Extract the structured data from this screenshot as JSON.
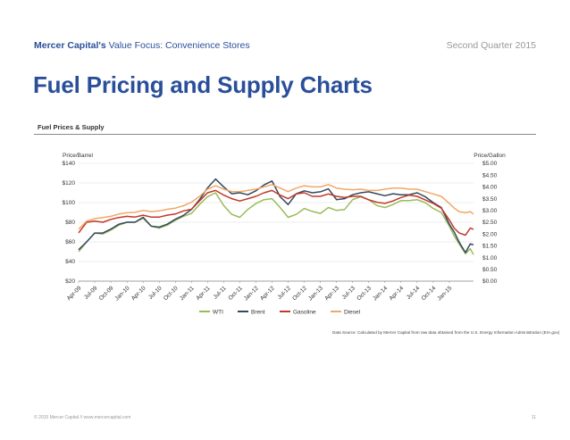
{
  "header": {
    "brand": "Mercer Capital's",
    "subtitle": "Value Focus: Convenience Stores",
    "quarter": "Second Quarter 2015"
  },
  "page_title": "Fuel Pricing and Supply Charts",
  "section_title": "Fuel Prices & Supply",
  "footer": {
    "copyright": "© 2015 Mercer Capital // www.mercercapital.com",
    "page_number": "11"
  },
  "chart_data": {
    "type": "line",
    "title": "Fuel Prices & Supply",
    "ylabel_left": "Price/Barrel",
    "ylabel_right": "Price/Gallon",
    "ylim_left": [
      20,
      140
    ],
    "ylim_right": [
      0,
      5
    ],
    "yticks_left": [
      "$20",
      "$40",
      "$60",
      "$80",
      "$100",
      "$120",
      "$140"
    ],
    "yticks_right": [
      "$0.00",
      "$0.50",
      "$1.00",
      "$1.50",
      "$2.00",
      "$2.50",
      "$3.00",
      "$3.50",
      "$4.00",
      "$4.50",
      "$5.00"
    ],
    "categories": [
      "Apr-09",
      "Jul-09",
      "Oct-09",
      "Jan-10",
      "Apr-10",
      "Jul-10",
      "Oct-10",
      "Jan-11",
      "Apr-11",
      "Jul-11",
      "Oct-11",
      "Jan-12",
      "Apr-12",
      "Jul-12",
      "Oct-12",
      "Jan-13",
      "Apr-13",
      "Jul-13",
      "Oct-13",
      "Jan-14",
      "Apr-14",
      "Jul-14",
      "Oct-14",
      "Jan-15"
    ],
    "x_end": 24.5,
    "grid": true,
    "legend_position": "bottom",
    "series": [
      {
        "name": "WTI",
        "axis": "left",
        "color": "#9bbb59",
        "x": [
          0,
          0.5,
          1,
          1.5,
          2,
          2.5,
          3,
          3.5,
          4,
          4.5,
          5,
          5.5,
          6,
          6.5,
          7,
          7.5,
          8,
          8.5,
          9,
          9.5,
          10,
          10.5,
          11,
          11.5,
          12,
          12.5,
          13,
          13.5,
          14,
          14.5,
          15,
          15.5,
          16,
          16.5,
          17,
          17.5,
          18,
          18.5,
          19,
          19.5,
          20,
          20.5,
          21,
          21.5,
          22,
          22.5,
          23,
          23.3,
          23.6,
          24,
          24.3,
          24.5
        ],
        "values": [
          50,
          60,
          69,
          68,
          72,
          77,
          80,
          80,
          84,
          76,
          74,
          77,
          82,
          86,
          89,
          98,
          106,
          110,
          97,
          88,
          85,
          93,
          99,
          103,
          104,
          95,
          85,
          88,
          94,
          91,
          89,
          95,
          92,
          93,
          103,
          106,
          103,
          97,
          95,
          98,
          102,
          102,
          103,
          100,
          94,
          90,
          76,
          66,
          58,
          48,
          53,
          47
        ]
      },
      {
        "name": "Brent",
        "axis": "left",
        "color": "#34495e",
        "x": [
          0,
          0.5,
          1,
          1.5,
          2,
          2.5,
          3,
          3.5,
          4,
          4.5,
          5,
          5.5,
          6,
          6.5,
          7,
          7.5,
          8,
          8.5,
          9,
          9.5,
          10,
          10.5,
          11,
          11.5,
          12,
          12.5,
          13,
          13.5,
          14,
          14.5,
          15,
          15.5,
          16,
          16.5,
          17,
          17.5,
          18,
          18.5,
          19,
          19.5,
          20,
          20.5,
          21,
          21.5,
          22,
          22.5,
          23,
          23.3,
          23.6,
          24,
          24.3,
          24.5
        ],
        "values": [
          52,
          60,
          69,
          69,
          73,
          78,
          80,
          80,
          85,
          76,
          75,
          78,
          83,
          87,
          93,
          103,
          115,
          124,
          116,
          109,
          110,
          108,
          112,
          118,
          122,
          106,
          98,
          109,
          112,
          110,
          111,
          114,
          103,
          104,
          108,
          110,
          111,
          109,
          107,
          109,
          108,
          108,
          110,
          106,
          100,
          95,
          78,
          70,
          60,
          49,
          58,
          57
        ]
      },
      {
        "name": "Gasoline",
        "axis": "right",
        "color": "#c0392b",
        "x": [
          0,
          0.5,
          1,
          1.5,
          2,
          2.5,
          3,
          3.5,
          4,
          4.5,
          5,
          5.5,
          6,
          6.5,
          7,
          7.5,
          8,
          8.5,
          9,
          9.5,
          10,
          10.5,
          11,
          11.5,
          12,
          12.5,
          13,
          13.5,
          14,
          14.5,
          15,
          15.5,
          16,
          16.5,
          17,
          17.5,
          18,
          18.5,
          19,
          19.5,
          20,
          20.5,
          21,
          21.5,
          22,
          22.5,
          23,
          23.3,
          23.6,
          24,
          24.3,
          24.5
        ],
        "values": [
          2.05,
          2.5,
          2.55,
          2.5,
          2.62,
          2.7,
          2.75,
          2.72,
          2.8,
          2.72,
          2.72,
          2.8,
          2.85,
          2.98,
          3.05,
          3.4,
          3.75,
          3.85,
          3.65,
          3.5,
          3.4,
          3.5,
          3.6,
          3.75,
          3.85,
          3.65,
          3.5,
          3.7,
          3.75,
          3.6,
          3.6,
          3.7,
          3.6,
          3.55,
          3.6,
          3.6,
          3.45,
          3.35,
          3.3,
          3.4,
          3.55,
          3.65,
          3.6,
          3.45,
          3.3,
          3.1,
          2.6,
          2.25,
          2.05,
          1.95,
          2.25,
          2.2
        ]
      },
      {
        "name": "Diesel",
        "axis": "right",
        "color": "#f0a868",
        "x": [
          0,
          0.5,
          1,
          1.5,
          2,
          2.5,
          3,
          3.5,
          4,
          4.5,
          5,
          5.5,
          6,
          6.5,
          7,
          7.5,
          8,
          8.5,
          9,
          9.5,
          10,
          10.5,
          11,
          11.5,
          12,
          12.5,
          13,
          13.5,
          14,
          14.5,
          15,
          15.5,
          16,
          16.5,
          17,
          17.5,
          18,
          18.5,
          19,
          19.5,
          20,
          20.5,
          21,
          21.5,
          22,
          22.5,
          23,
          23.3,
          23.6,
          24,
          24.3,
          24.5
        ],
        "values": [
          2.2,
          2.55,
          2.65,
          2.7,
          2.75,
          2.85,
          2.9,
          2.92,
          3.0,
          2.95,
          2.98,
          3.05,
          3.1,
          3.2,
          3.35,
          3.6,
          3.9,
          4.05,
          3.9,
          3.8,
          3.8,
          3.85,
          3.9,
          4.0,
          4.1,
          3.95,
          3.8,
          3.95,
          4.05,
          4.0,
          4.0,
          4.1,
          3.95,
          3.9,
          3.88,
          3.9,
          3.85,
          3.85,
          3.9,
          3.95,
          3.95,
          3.9,
          3.9,
          3.8,
          3.7,
          3.6,
          3.3,
          3.1,
          2.95,
          2.9,
          2.95,
          2.85
        ]
      }
    ],
    "annotation": "Data Source: Calculated by Mercer Capital from raw data obtained from the U.S. Energy Information Administration (EIA.gov)"
  }
}
